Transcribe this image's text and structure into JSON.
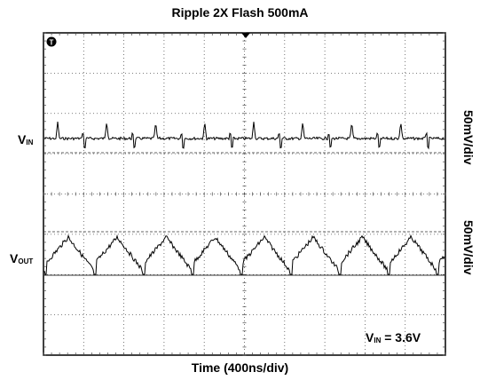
{
  "chart_data": {
    "type": "line",
    "title": "Ripple 2X Flash 500mA",
    "xlabel": "Time (400ns/div)",
    "trigger_marker": "T",
    "channels": [
      {
        "name_main": "V",
        "name_sub": "IN",
        "scale": "50mV/div",
        "waveform": "spiky ripple (~11 spikes over 4000 ns)"
      },
      {
        "name_main": "V",
        "name_sub": "OUT",
        "scale": "50mV/div",
        "waveform": "sawtooth ripple (~11 cycles over 4000 ns)"
      }
    ],
    "annotation": {
      "main": "V",
      "sub": "IN",
      "value": "= 3.6V"
    },
    "x_divisions": 10,
    "y_divisions": 8,
    "grid": true
  }
}
